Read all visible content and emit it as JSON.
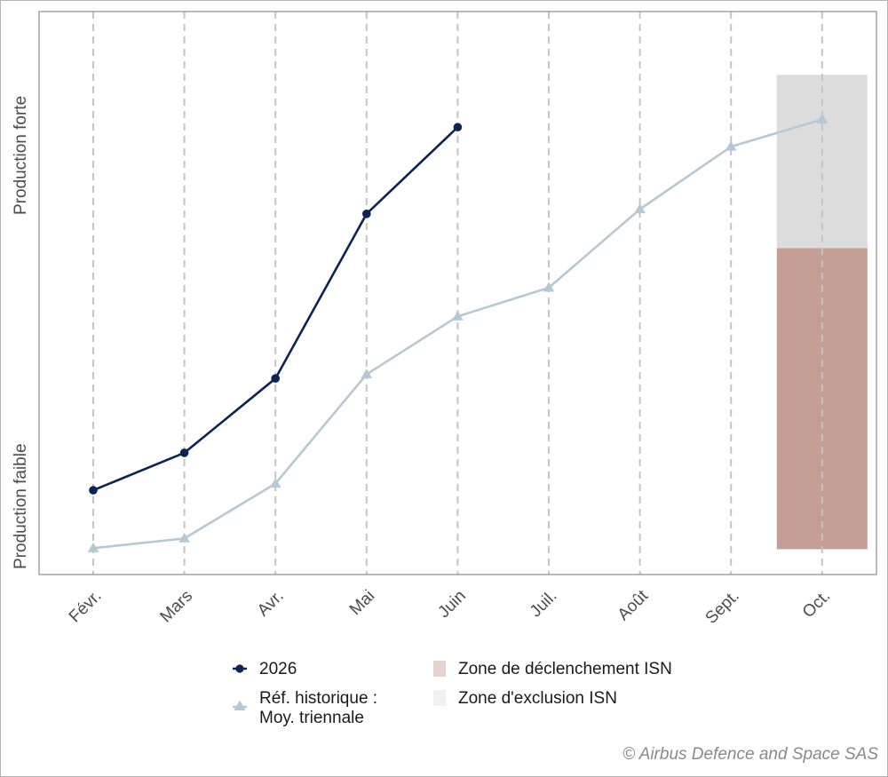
{
  "chart_data": {
    "type": "line",
    "categories": [
      "Févr.",
      "Mars",
      "Avr.",
      "Mai",
      "Juin",
      "Juil.",
      "Août",
      "Sept.",
      "Oct."
    ],
    "ylabel_low": "Production faible",
    "ylabel_high": "Production forte",
    "ylim": [
      0,
      100
    ],
    "grid": "vertical dashed",
    "series": [
      {
        "name": "2026",
        "marker": "circle",
        "color": "#0b2454",
        "values": [
          11.5,
          18.8,
          33.3,
          65.4,
          82.3,
          null,
          null,
          null,
          null
        ]
      },
      {
        "name": "Réf. historique : Moy. triennale",
        "marker": "triangle",
        "color": "#b5c9d4",
        "values": [
          0.2,
          2.1,
          12.8,
          34.1,
          45.4,
          51.0,
          66.3,
          78.5,
          83.8
        ]
      }
    ],
    "zones": [
      {
        "name": "Zone de déclenchement ISN",
        "category": "Oct.",
        "from": 0,
        "to": 58.7,
        "color": "#c49e94",
        "legend_color": "#e5d3ce"
      },
      {
        "name": "Zone d'exclusion ISN",
        "category": "Oct.",
        "from": 58.7,
        "to": 92.5,
        "color": "#dcdcdc",
        "legend_color": "#f1f1f1"
      }
    ],
    "legend": {
      "s1": "2026",
      "s2_line1": "Réf. historique :",
      "s2_line2": "Moy. triennale",
      "z1": "Zone de déclenchement ISN",
      "z2": "Zone d'exclusion ISN"
    },
    "copyright": "© Airbus Defence and Space SAS"
  }
}
